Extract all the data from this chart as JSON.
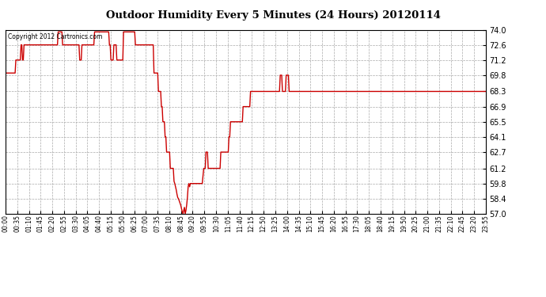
{
  "title": "Outdoor Humidity Every 5 Minutes (24 Hours) 20120114",
  "copyright_text": "Copyright 2012 Cartronics.com",
  "line_color": "#cc0000",
  "bg_color": "#ffffff",
  "plot_bg_color": "#ffffff",
  "grid_color": "#aaaaaa",
  "ylim": [
    57.0,
    74.0
  ],
  "yticks": [
    57.0,
    58.4,
    59.8,
    61.2,
    62.7,
    64.1,
    65.5,
    66.9,
    68.3,
    69.8,
    71.2,
    72.6,
    74.0
  ],
  "xtick_labels": [
    "00:00",
    "00:35",
    "01:10",
    "01:45",
    "02:20",
    "02:55",
    "03:30",
    "04:05",
    "04:40",
    "05:15",
    "05:50",
    "06:25",
    "07:00",
    "07:35",
    "08:10",
    "08:45",
    "09:20",
    "09:55",
    "10:30",
    "11:05",
    "11:40",
    "12:15",
    "12:50",
    "13:25",
    "14:00",
    "14:35",
    "15:10",
    "15:45",
    "16:20",
    "16:55",
    "17:30",
    "18:05",
    "18:40",
    "19:15",
    "19:50",
    "20:25",
    "21:00",
    "21:35",
    "22:10",
    "22:45",
    "23:20",
    "23:55"
  ],
  "humidity": [
    70.0,
    70.0,
    70.0,
    70.0,
    70.0,
    70.0,
    70.0,
    70.0,
    70.0,
    70.0,
    70.0,
    70.0,
    70.0,
    70.0,
    71.2,
    71.2,
    71.2,
    71.2,
    71.2,
    71.2,
    71.2,
    72.6,
    72.6,
    71.2,
    71.2,
    72.6,
    72.6,
    72.6,
    72.6,
    72.6,
    72.6,
    72.6,
    72.6,
    72.6,
    72.6,
    72.6,
    72.6,
    72.6,
    72.6,
    72.6,
    72.6,
    72.6,
    72.6,
    72.6,
    72.6,
    72.6,
    72.6,
    72.6,
    72.6,
    72.6,
    72.6,
    72.6,
    72.6,
    72.6,
    72.6,
    72.6,
    72.6,
    72.6,
    72.6,
    72.6,
    72.6,
    72.6,
    72.6,
    72.6,
    72.6,
    72.6,
    72.6,
    72.6,
    72.6,
    72.6,
    72.6,
    73.8,
    73.8,
    73.8,
    73.8,
    73.8,
    73.8,
    72.6,
    72.6,
    72.6,
    72.6,
    72.6,
    72.6,
    72.6,
    72.6,
    72.6,
    72.6,
    72.6,
    72.6,
    72.6,
    72.6,
    72.6,
    72.6,
    72.6,
    72.6,
    72.6,
    72.6,
    72.6,
    72.6,
    72.6,
    71.2,
    71.2,
    71.2,
    72.6,
    72.6,
    72.6,
    72.6,
    72.6,
    72.6,
    72.6,
    72.6,
    72.6,
    72.6,
    72.6,
    72.6,
    72.6,
    72.6,
    72.6,
    72.6,
    72.6,
    73.8,
    73.8,
    73.8,
    73.8,
    73.8,
    73.8,
    73.8,
    73.8,
    73.8,
    73.8,
    73.8,
    73.8,
    73.8,
    73.8,
    73.8,
    73.8,
    73.8,
    73.8,
    73.8,
    73.8,
    72.6,
    72.6,
    71.2,
    71.2,
    71.2,
    71.2,
    72.6,
    72.6,
    72.6,
    72.6,
    71.2,
    71.2,
    71.2,
    71.2,
    71.2,
    71.2,
    71.2,
    71.2,
    71.2,
    73.8,
    73.8,
    73.8,
    73.8,
    73.8,
    73.8,
    73.8,
    73.8,
    73.8,
    73.8,
    73.8,
    73.8,
    73.8,
    73.8,
    73.8,
    73.8,
    72.6,
    72.6,
    72.6,
    72.6,
    72.6,
    72.6,
    72.6,
    72.6,
    72.6,
    72.6,
    72.6,
    72.6,
    72.6,
    72.6,
    72.6,
    72.6,
    72.6,
    72.6,
    72.6,
    72.6,
    72.6,
    72.6,
    72.6,
    72.6,
    72.6,
    70.0,
    70.0,
    70.0,
    70.0,
    70.0,
    70.0,
    68.3,
    68.3,
    68.3,
    68.3,
    66.9,
    66.9,
    65.5,
    65.5,
    65.5,
    64.1,
    64.1,
    62.7,
    62.7,
    62.7,
    62.7,
    62.7,
    61.2,
    61.2,
    61.2,
    61.2,
    61.2,
    60.0,
    59.8,
    59.5,
    59.2,
    58.8,
    58.5,
    58.4,
    58.2,
    58.0,
    57.8,
    57.5,
    57.2,
    57.0,
    57.3,
    57.6,
    57.0,
    57.3,
    57.8,
    58.5,
    59.5,
    59.8,
    59.5,
    59.8,
    59.8,
    59.8,
    59.8,
    59.8,
    59.8,
    59.8,
    59.8,
    59.8,
    59.8,
    59.8,
    59.8,
    59.8,
    59.8,
    59.8,
    59.8,
    59.8,
    60.5,
    61.2,
    61.2,
    61.2,
    62.7,
    62.7,
    62.7,
    61.2,
    61.2,
    61.2,
    61.2,
    61.2,
    61.2,
    61.2,
    61.2,
    61.2,
    61.2,
    61.2,
    61.2,
    61.2,
    61.2,
    61.2,
    61.2,
    61.2,
    62.7,
    62.7,
    62.7,
    62.7,
    62.7,
    62.7,
    62.7,
    62.7,
    62.7,
    62.7,
    62.7,
    64.1,
    64.1,
    65.5,
    65.5,
    65.5,
    65.5,
    65.5,
    65.5,
    65.5,
    65.5,
    65.5,
    65.5,
    65.5,
    65.5,
    65.5,
    65.5,
    65.5,
    65.5,
    65.5,
    66.9,
    66.9,
    66.9,
    66.9,
    66.9,
    66.9,
    66.9,
    66.9,
    66.9,
    66.9,
    68.3,
    68.3,
    68.3,
    68.3,
    68.3,
    68.3,
    68.3,
    68.3,
    68.3,
    68.3,
    68.3,
    68.3,
    68.3,
    68.3,
    68.3,
    68.3,
    68.3,
    68.3,
    68.3,
    68.3,
    68.3,
    68.3,
    68.3,
    68.3,
    68.3,
    68.3,
    68.3,
    68.3,
    68.3,
    68.3,
    68.3,
    68.3,
    68.3,
    68.3,
    68.3,
    68.3,
    68.3,
    68.3,
    68.3,
    68.3,
    69.8,
    69.8,
    69.8,
    68.3,
    68.3,
    68.3,
    68.3,
    68.3,
    69.8,
    69.8,
    69.8,
    69.8,
    68.3,
    68.3,
    68.3,
    68.3,
    68.3,
    68.3,
    68.3,
    68.3,
    68.3,
    68.3,
    68.3,
    68.3,
    68.3,
    68.3,
    68.3,
    68.3,
    68.3,
    68.3,
    68.3,
    68.3,
    68.3,
    68.3,
    68.3,
    68.3,
    68.3,
    68.3,
    68.3,
    68.3,
    68.3,
    68.3,
    68.3,
    68.3,
    68.3,
    68.3,
    68.3,
    68.3,
    68.3,
    68.3,
    68.3,
    68.3,
    68.3,
    68.3,
    68.3,
    68.3,
    68.3,
    68.3,
    68.3,
    68.3,
    68.3,
    68.3,
    68.3,
    68.3,
    68.3,
    68.3,
    68.3,
    68.3,
    68.3,
    68.3,
    68.3,
    68.3,
    68.3,
    68.3,
    68.3,
    68.3,
    68.3,
    68.3,
    68.3,
    68.3,
    68.3,
    68.3,
    68.3,
    68.3,
    68.3,
    68.3,
    68.3,
    68.3,
    68.3,
    68.3,
    68.3,
    68.3,
    68.3,
    68.3,
    68.3,
    68.3,
    68.3,
    68.3,
    68.3,
    68.3,
    68.3,
    68.3,
    68.3,
    68.3,
    68.3,
    68.3,
    68.3,
    68.3,
    68.3,
    68.3,
    68.3,
    68.3,
    68.3,
    68.3,
    68.3,
    68.3,
    68.3,
    68.3,
    68.3,
    68.3,
    68.3,
    68.3,
    68.3,
    68.3,
    68.3,
    68.3,
    68.3,
    68.3,
    68.3,
    68.3,
    68.3,
    68.3,
    68.3,
    68.3,
    68.3,
    68.3,
    68.3,
    68.3,
    68.3,
    68.3,
    68.3,
    68.3,
    68.3,
    68.3,
    68.3,
    68.3,
    68.3,
    68.3,
    68.3,
    68.3,
    68.3,
    68.3,
    68.3,
    68.3,
    68.3,
    68.3,
    68.3,
    68.3,
    68.3,
    68.3,
    68.3,
    68.3,
    68.3,
    68.3,
    68.3,
    68.3,
    68.3,
    68.3,
    68.3,
    68.3,
    68.3,
    68.3,
    68.3,
    68.3,
    68.3,
    68.3,
    68.3,
    68.3,
    68.3,
    68.3,
    68.3,
    68.3,
    68.3,
    68.3,
    68.3,
    68.3,
    68.3,
    68.3,
    68.3,
    68.3,
    68.3,
    68.3,
    68.3,
    68.3,
    68.3,
    68.3,
    68.3,
    68.3,
    68.3,
    68.3,
    68.3,
    68.3,
    68.3,
    68.3,
    68.3,
    68.3,
    68.3,
    68.3,
    68.3,
    68.3,
    68.3,
    68.3,
    68.3,
    68.3,
    68.3,
    68.3,
    68.3,
    68.3,
    68.3,
    68.3,
    68.3,
    68.3,
    68.3,
    68.3,
    68.3,
    68.3,
    68.3,
    68.3,
    68.3,
    68.3,
    68.3,
    68.3,
    68.3,
    68.3,
    68.3,
    68.3,
    68.3,
    68.3,
    68.3,
    68.3,
    68.3,
    68.3,
    68.3,
    68.3,
    68.3,
    68.3,
    68.3,
    68.3,
    68.3,
    68.3,
    68.3,
    68.3,
    68.3,
    68.3,
    68.3,
    68.3,
    68.3,
    68.3,
    68.3,
    68.3,
    68.3,
    68.3,
    68.3,
    68.3,
    68.3,
    68.3,
    68.3,
    68.3,
    68.3,
    68.3,
    68.3,
    68.3,
    68.3,
    68.3,
    68.3,
    68.3,
    68.3,
    68.3
  ]
}
